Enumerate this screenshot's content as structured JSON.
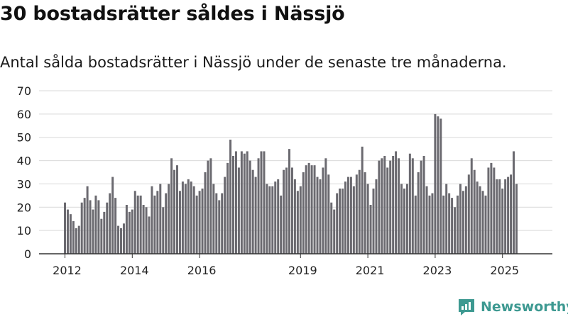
{
  "title": "30 bostadsrätter såldes i Nässjö",
  "subtitle": "Antal sålda bostadsrätter i Nässjö under de senaste tre månaderna.",
  "brand": {
    "name": "Newsworthy",
    "icon": "newsworthy-logo-icon"
  },
  "colors": {
    "bar": "#6b6a70",
    "highlight": "#2a9d8f",
    "grid": "#d9d9d9",
    "axis": "#333333",
    "brand": "#3d9991"
  },
  "chart_data": {
    "type": "bar",
    "x_tick_labels": [
      "2012",
      "2014",
      "2016",
      "2019",
      "2021",
      "2023",
      "2025"
    ],
    "x_tick_index": [
      0,
      24,
      48,
      84,
      108,
      132,
      156
    ],
    "y_ticks": [
      0,
      10,
      20,
      30,
      40,
      50,
      60,
      70
    ],
    "ylim": [
      0,
      70
    ],
    "grid": true,
    "legend": "none",
    "highlight_label": "30",
    "values": [
      22,
      19,
      17,
      14,
      11,
      12,
      22,
      24,
      29,
      23,
      19,
      25,
      23,
      15,
      18,
      22,
      26,
      33,
      24,
      12,
      11,
      13,
      21,
      18,
      19,
      27,
      25,
      25,
      21,
      20,
      16,
      29,
      25,
      27,
      30,
      20,
      26,
      30,
      41,
      36,
      38,
      27,
      31,
      30,
      32,
      31,
      29,
      25,
      27,
      28,
      35,
      40,
      41,
      30,
      26,
      23,
      26,
      33,
      39,
      49,
      42,
      44,
      37,
      44,
      43,
      44,
      40,
      36,
      33,
      41,
      44,
      44,
      30,
      29,
      29,
      31,
      32,
      25,
      36,
      37,
      45,
      37,
      32,
      27,
      29,
      35,
      38,
      39,
      38,
      38,
      33,
      32,
      37,
      41,
      34,
      22,
      19,
      26,
      28,
      28,
      31,
      33,
      33,
      29,
      34,
      36,
      46,
      35,
      30,
      21,
      28,
      32,
      40,
      41,
      42,
      37,
      40,
      42,
      44,
      41,
      30,
      28,
      30,
      43,
      41,
      25,
      35,
      40,
      42,
      29,
      25,
      26,
      60,
      59,
      58,
      25,
      30,
      26,
      24,
      20,
      25,
      30,
      27,
      29,
      34,
      41,
      36,
      31,
      29,
      27,
      25,
      37,
      39,
      37,
      32,
      32,
      28,
      32,
      33,
      34,
      44,
      30
    ],
    "highlight_index": 165
  }
}
